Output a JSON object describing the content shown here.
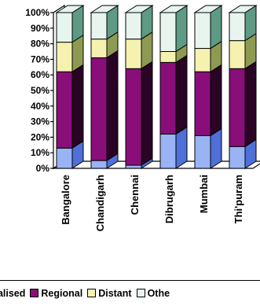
{
  "chart_data": {
    "type": "bar",
    "stacked": true,
    "percent": true,
    "three_d": true,
    "categories": [
      "Bangalore",
      "Chandigarh",
      "Chennai",
      "Dibrugarh",
      "Mumbai",
      "Thi'puram"
    ],
    "series": [
      {
        "name": "Localised",
        "values": [
          13,
          5,
          2,
          22,
          21,
          14
        ],
        "color": "#99b3f5",
        "side": "#4f6fd9"
      },
      {
        "name": "Regional",
        "values": [
          49,
          66,
          62,
          46,
          41,
          50
        ],
        "color": "#8a0e7a",
        "side": "#2a0424"
      },
      {
        "name": "Distant",
        "values": [
          19,
          12,
          19,
          7,
          15,
          18
        ],
        "color": "#f5f2b0",
        "side": "#8e9a52"
      },
      {
        "name": "Others",
        "values": [
          19,
          17,
          17,
          25,
          23,
          18
        ],
        "color": "#e8f5ef",
        "side": "#5e9a84"
      }
    ],
    "y_ticks": [
      "0%",
      "10%",
      "20%",
      "30%",
      "40%",
      "50%",
      "60%",
      "70%",
      "80%",
      "90%",
      "100%"
    ],
    "ylim": [
      0,
      100
    ],
    "grid": false,
    "legend_position": "bottom",
    "legend_labels": [
      "calised",
      "Regional",
      "Distant",
      "Othe"
    ]
  }
}
